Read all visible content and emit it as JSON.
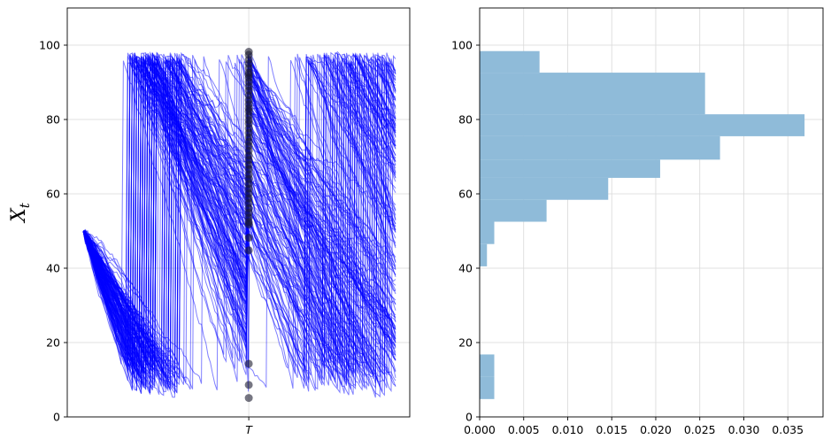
{
  "chart_data": [
    {
      "type": "line",
      "title": "",
      "xlabel": "",
      "ylabel": "X_t",
      "ylabel_display": "X",
      "ylabel_sub": "t",
      "ylim": [
        0,
        110
      ],
      "yticks": [
        0,
        20,
        40,
        60,
        80,
        100
      ],
      "xtick_labels": [
        "T"
      ],
      "xtick_value": 0.53,
      "grid": true,
      "line_color": "#0000ff",
      "marker_color": "#1a1a2e",
      "n_paths": 150,
      "start_value": 50,
      "wrap_range": [
        5,
        98
      ],
      "terminal_values_at_T": [
        98.2,
        97.4,
        96.1,
        95.0,
        93.8,
        92.6,
        92.0,
        91.2,
        90.1,
        88.9,
        87.8,
        86.5,
        85.2,
        84.1,
        83.0,
        82.2,
        81.0,
        79.8,
        78.9,
        77.6,
        76.4,
        75.2,
        74.0,
        72.9,
        71.6,
        70.3,
        69.1,
        67.8,
        66.6,
        65.2,
        64.0,
        62.7,
        61.4,
        60.1,
        58.8,
        57.5,
        56.1,
        54.9,
        53.6,
        52.4,
        51.8,
        48.2,
        44.8,
        14.3,
        8.6,
        5.1
      ]
    },
    {
      "type": "bar",
      "orientation": "horizontal",
      "title": "",
      "xlabel": "",
      "ylabel": "",
      "xlim": [
        0,
        0.039
      ],
      "ylim": [
        0,
        110
      ],
      "xticks": [
        0.0,
        0.005,
        0.01,
        0.015,
        0.02,
        0.025,
        0.03,
        0.035
      ],
      "xtick_labels": [
        "0.000",
        "0.005",
        "0.010",
        "0.015",
        "0.020",
        "0.025",
        "0.030",
        "0.035"
      ],
      "yticks": [
        0,
        20,
        40,
        60,
        80,
        100
      ],
      "grid": true,
      "bar_color": "#8fbbd9",
      "bins": [
        {
          "y0": 4.8,
          "y1": 10.8,
          "density": 0.00166
        },
        {
          "y0": 10.8,
          "y1": 16.8,
          "density": 0.00166
        },
        {
          "y0": 40.5,
          "y1": 46.5,
          "density": 0.00083
        },
        {
          "y0": 46.5,
          "y1": 52.5,
          "density": 0.00166
        },
        {
          "y0": 52.5,
          "y1": 58.4,
          "density": 0.0076
        },
        {
          "y0": 58.4,
          "y1": 64.3,
          "density": 0.0146
        },
        {
          "y0": 64.3,
          "y1": 69.2,
          "density": 0.0205
        },
        {
          "y0": 69.2,
          "y1": 75.5,
          "density": 0.0273
        },
        {
          "y0": 75.5,
          "y1": 81.4,
          "density": 0.0369
        },
        {
          "y0": 81.4,
          "y1": 92.6,
          "density": 0.0256
        },
        {
          "y0": 92.6,
          "y1": 98.4,
          "density": 0.0068
        }
      ]
    }
  ]
}
